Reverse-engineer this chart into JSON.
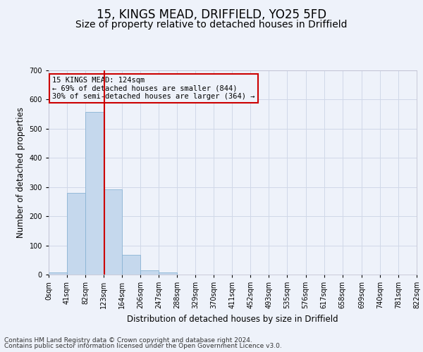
{
  "title": "15, KINGS MEAD, DRIFFIELD, YO25 5FD",
  "subtitle": "Size of property relative to detached houses in Driffield",
  "xlabel": "Distribution of detached houses by size in Driffield",
  "ylabel": "Number of detached properties",
  "footnote1": "Contains HM Land Registry data © Crown copyright and database right 2024.",
  "footnote2": "Contains public sector information licensed under the Open Government Licence v3.0.",
  "annotation_line1": "15 KINGS MEAD: 124sqm",
  "annotation_line2": "← 69% of detached houses are smaller (844)",
  "annotation_line3": "30% of semi-detached houses are larger (364) →",
  "bar_color": "#c5d8ed",
  "bar_edge_color": "#8ab4d4",
  "grid_color": "#d0d8e8",
  "vline_color": "#cc0000",
  "vline_x": 124,
  "bin_width": 41,
  "bin_starts": [
    0,
    41,
    82,
    123,
    164,
    205,
    246,
    287,
    328,
    369,
    410,
    451,
    492,
    533,
    574,
    615,
    656,
    699,
    740,
    781
  ],
  "bar_heights": [
    8,
    280,
    557,
    291,
    68,
    14,
    8,
    0,
    0,
    0,
    0,
    0,
    0,
    0,
    0,
    0,
    0,
    0,
    0,
    0
  ],
  "ylim": [
    0,
    700
  ],
  "yticks": [
    0,
    100,
    200,
    300,
    400,
    500,
    600,
    700
  ],
  "xlim": [
    0,
    822
  ],
  "xtick_labels": [
    "0sqm",
    "41sqm",
    "82sqm",
    "123sqm",
    "164sqm",
    "206sqm",
    "247sqm",
    "288sqm",
    "329sqm",
    "370sqm",
    "411sqm",
    "452sqm",
    "493sqm",
    "535sqm",
    "576sqm",
    "617sqm",
    "658sqm",
    "699sqm",
    "740sqm",
    "781sqm",
    "822sqm"
  ],
  "background_color": "#eef2fa",
  "title_fontsize": 12,
  "subtitle_fontsize": 10,
  "axis_label_fontsize": 8.5,
  "tick_fontsize": 7,
  "annotation_fontsize": 7.5,
  "footnote_fontsize": 6.5
}
